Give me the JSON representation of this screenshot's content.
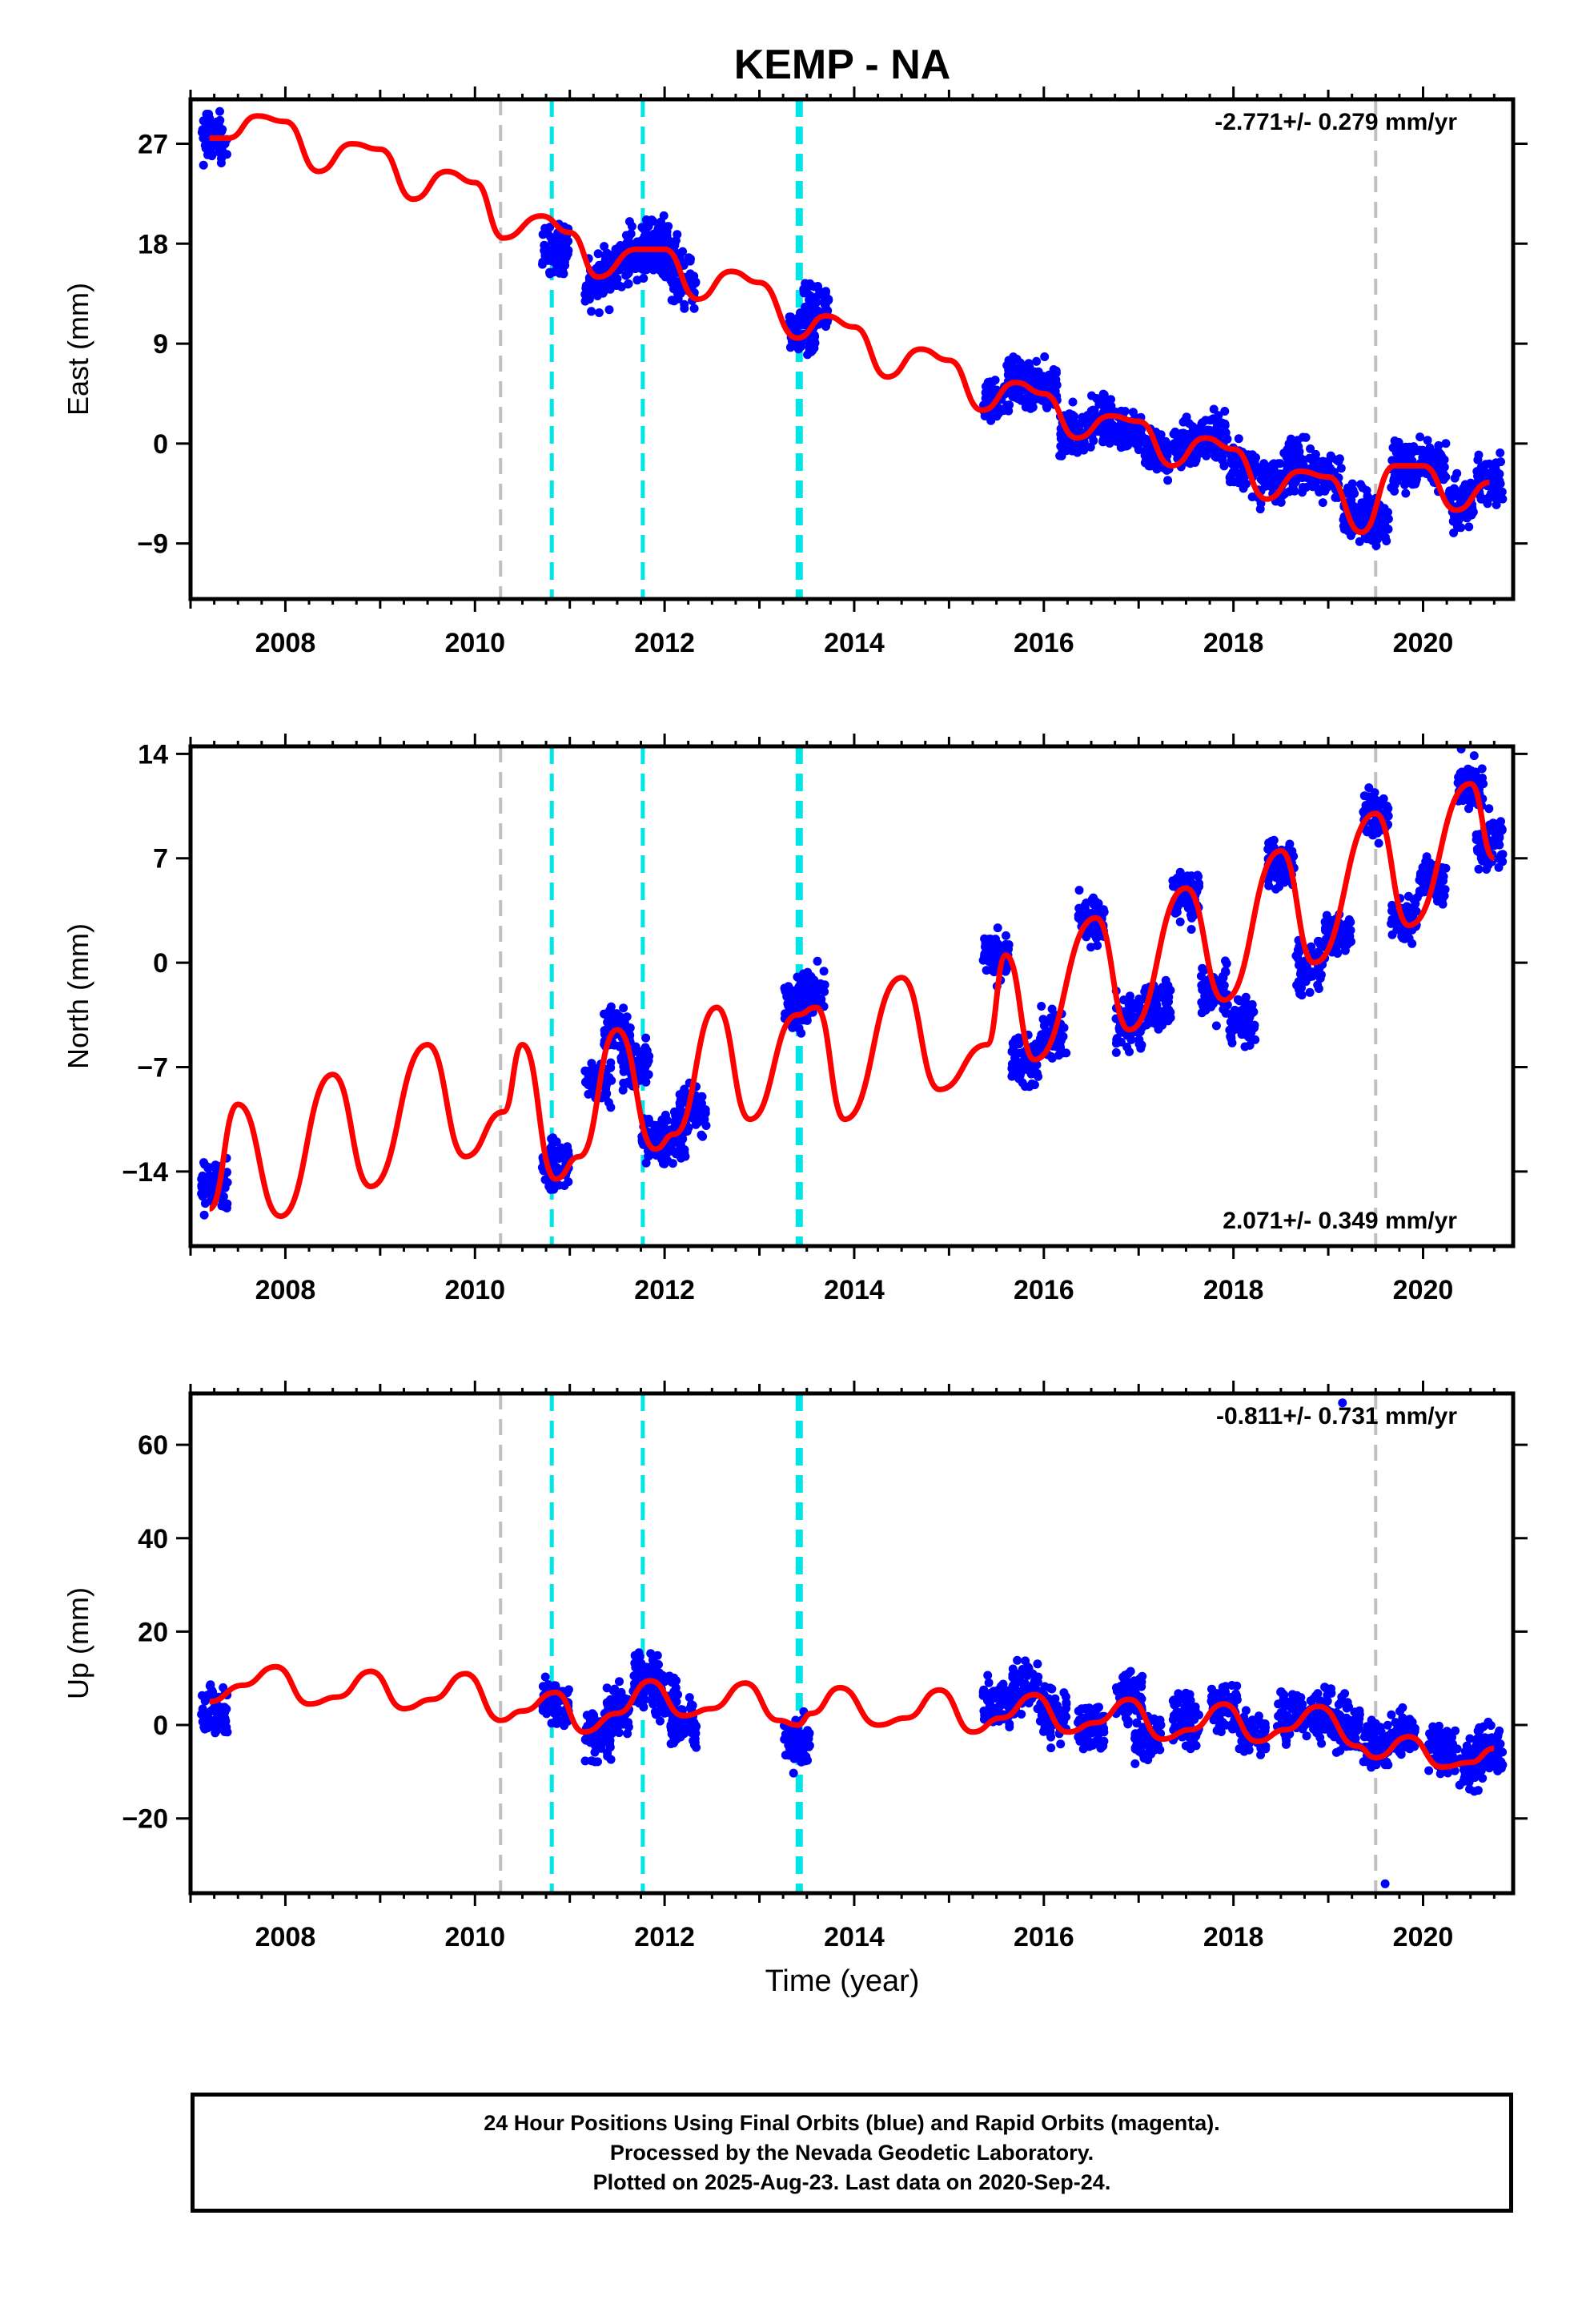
{
  "figure_title": "KEMP - NA",
  "caption": {
    "line1": "24 Hour Positions Using Final Orbits (blue) and Rapid Orbits (magenta).",
    "line2": "Processed by the Nevada Geodetic Laboratory.",
    "line3": "Plotted on 2025-Aug-23. Last data on 2020-Sep-24."
  },
  "colors": {
    "final_orbits": "#0000ff",
    "rapid_orbits": "#ff00ff",
    "model_fit": "#ff0000",
    "equipment_change": "#00e5e5",
    "earthquake": "#c0c0c0"
  },
  "chart_data": [
    {
      "type": "scatter",
      "title": "KEMP - NA",
      "xlabel": "",
      "ylabel": "East (mm)",
      "xlim": [
        2007.0,
        2020.95
      ],
      "ylim": [
        -14,
        31
      ],
      "x_ticks": [
        2008,
        2010,
        2012,
        2014,
        2016,
        2018,
        2020
      ],
      "y_ticks": [
        -9,
        0,
        9,
        18,
        27
      ],
      "rate_label": "-2.771+/- 0.279 mm/yr",
      "rate_position": "top-right",
      "grid": false,
      "vertical_lines": {
        "cyan": [
          2010.81,
          2011.77,
          2013.42
        ],
        "gray": [
          2010.27,
          2019.5
        ]
      },
      "series": [
        {
          "name": "Final Orbits",
          "style": "points",
          "x": [
            2007.25,
            2010.85,
            2011.3,
            2011.5,
            2011.7,
            2011.9,
            2012.0,
            2012.2,
            2013.45,
            2013.6,
            2015.5,
            2015.75,
            2016.0,
            2016.3,
            2016.6,
            2016.9,
            2017.2,
            2017.5,
            2017.8,
            2018.1,
            2018.4,
            2018.7,
            2019.0,
            2019.3,
            2019.5,
            2019.8,
            2020.1,
            2020.4,
            2020.7
          ],
          "y": [
            27.5,
            17.5,
            14.5,
            16.0,
            17.5,
            18.0,
            17.0,
            14.5,
            10.0,
            12.0,
            4.0,
            5.5,
            5.0,
            1.0,
            2.0,
            1.5,
            -1.0,
            0.0,
            0.5,
            -2.0,
            -3.5,
            -2.0,
            -3.0,
            -6.0,
            -7.0,
            -2.0,
            -2.0,
            -5.5,
            -3.5
          ]
        },
        {
          "name": "Model fit",
          "style": "line",
          "x": [
            2007.2,
            2007.4,
            2007.7,
            2008.0,
            2008.35,
            2008.7,
            2009.0,
            2009.35,
            2009.7,
            2010.0,
            2010.3,
            2010.7,
            2011.0,
            2011.3,
            2011.7,
            2012.0,
            2012.35,
            2012.7,
            2013.0,
            2013.4,
            2013.7,
            2014.0,
            2014.35,
            2014.7,
            2015.0,
            2015.35,
            2015.7,
            2016.0,
            2016.35,
            2016.7,
            2017.0,
            2017.35,
            2017.7,
            2018.0,
            2018.35,
            2018.7,
            2019.0,
            2019.35,
            2019.7,
            2020.0,
            2020.35,
            2020.7
          ],
          "y": [
            27.5,
            27.5,
            29.5,
            29.0,
            24.5,
            27.0,
            26.5,
            22.0,
            24.5,
            23.5,
            18.5,
            20.5,
            19.0,
            15.0,
            17.5,
            17.5,
            13.0,
            15.5,
            14.5,
            9.5,
            11.5,
            10.5,
            6.0,
            8.5,
            7.5,
            3.0,
            5.5,
            4.5,
            0.5,
            2.5,
            2.0,
            -2.0,
            0.5,
            -0.5,
            -5.0,
            -2.5,
            -3.0,
            -8.0,
            -2.0,
            -2.0,
            -6.0,
            -3.5
          ]
        }
      ]
    },
    {
      "type": "scatter",
      "xlabel": "",
      "ylabel": "North (mm)",
      "xlim": [
        2007.0,
        2020.95
      ],
      "ylim": [
        -19,
        14.5
      ],
      "x_ticks": [
        2008,
        2010,
        2012,
        2014,
        2016,
        2018,
        2020
      ],
      "y_ticks": [
        -14,
        -7,
        0,
        7,
        14
      ],
      "rate_label": "2.071+/- 0.349 mm/yr",
      "rate_position": "bottom-right",
      "grid": false,
      "vertical_lines": {
        "cyan": [
          2010.81,
          2011.77,
          2013.42
        ],
        "gray": [
          2010.27,
          2019.5
        ]
      },
      "series": [
        {
          "name": "Final Orbits",
          "style": "points",
          "x": [
            2007.25,
            2010.85,
            2011.3,
            2011.5,
            2011.7,
            2011.9,
            2012.1,
            2012.3,
            2013.4,
            2013.55,
            2015.5,
            2015.8,
            2016.1,
            2016.5,
            2016.9,
            2017.2,
            2017.5,
            2017.8,
            2018.1,
            2018.5,
            2018.8,
            2019.1,
            2019.5,
            2019.8,
            2020.1,
            2020.5,
            2020.7
          ],
          "y": [
            -15.0,
            -13.5,
            -8.0,
            -4.5,
            -7.0,
            -12.0,
            -11.5,
            -10.0,
            -3.0,
            -2.0,
            0.5,
            -6.5,
            -5.0,
            3.0,
            -4.0,
            -3.0,
            4.5,
            -2.0,
            -4.0,
            6.5,
            -0.5,
            2.0,
            10.0,
            3.0,
            5.5,
            12.0,
            8.0
          ]
        },
        {
          "name": "Model fit",
          "style": "line",
          "x": [
            2007.2,
            2007.5,
            2007.95,
            2008.5,
            2008.9,
            2009.5,
            2009.9,
            2010.3,
            2010.5,
            2010.85,
            2011.1,
            2011.5,
            2011.9,
            2012.1,
            2012.55,
            2012.9,
            2013.4,
            2013.6,
            2013.9,
            2014.5,
            2014.9,
            2015.4,
            2015.6,
            2015.9,
            2016.55,
            2016.9,
            2017.5,
            2017.9,
            2018.5,
            2018.85,
            2019.5,
            2019.85,
            2020.5,
            2020.75
          ],
          "y": [
            -16.5,
            -9.5,
            -17.0,
            -7.5,
            -15.0,
            -5.5,
            -13.0,
            -10.0,
            -5.5,
            -14.5,
            -13.0,
            -4.5,
            -12.5,
            -11.5,
            -3.0,
            -10.5,
            -3.5,
            -3.0,
            -10.5,
            -1.0,
            -8.5,
            -5.5,
            0.5,
            -6.5,
            3.0,
            -4.5,
            5.0,
            -2.5,
            7.5,
            0.0,
            10.0,
            2.5,
            12.0,
            7.0
          ]
        }
      ]
    },
    {
      "type": "scatter",
      "xlabel": "Time (year)",
      "ylabel": "Up (mm)",
      "xlim": [
        2007.0,
        2020.95
      ],
      "ylim": [
        -36,
        71
      ],
      "x_ticks": [
        2008,
        2010,
        2012,
        2014,
        2016,
        2018,
        2020
      ],
      "y_ticks": [
        -20,
        0,
        20,
        40,
        60
      ],
      "rate_label": "-0.811+/- 0.731 mm/yr",
      "rate_position": "top-right",
      "grid": false,
      "vertical_lines": {
        "cyan": [
          2010.81,
          2011.77,
          2013.42
        ],
        "gray": [
          2010.27,
          2019.5
        ]
      },
      "series": [
        {
          "name": "Final Orbits",
          "style": "points",
          "x": [
            2007.25,
            2010.85,
            2011.3,
            2011.5,
            2011.8,
            2012.0,
            2012.2,
            2013.4,
            2015.5,
            2015.8,
            2016.1,
            2016.5,
            2016.9,
            2017.1,
            2017.5,
            2017.9,
            2018.2,
            2018.6,
            2018.9,
            2019.2,
            2019.5,
            2019.8,
            2020.2,
            2020.5,
            2020.7,
            2019.15,
            2019.6
          ],
          "y": [
            3.0,
            5.0,
            -2.0,
            3.0,
            10.0,
            7.0,
            0.0,
            -4.0,
            4.0,
            8.0,
            2.0,
            0.0,
            6.0,
            -3.0,
            1.0,
            4.0,
            -2.0,
            3.0,
            2.0,
            0.0,
            -4.0,
            -2.0,
            -5.0,
            -8.0,
            -5.0,
            69.0,
            -34.0
          ]
        },
        {
          "name": "Model fit",
          "style": "line",
          "x": [
            2007.2,
            2007.55,
            2007.9,
            2008.25,
            2008.55,
            2008.9,
            2009.25,
            2009.55,
            2009.9,
            2010.27,
            2010.5,
            2010.85,
            2011.15,
            2011.5,
            2011.85,
            2012.2,
            2012.5,
            2012.85,
            2013.2,
            2013.4,
            2013.55,
            2013.85,
            2014.25,
            2014.55,
            2014.9,
            2015.25,
            2015.55,
            2015.9,
            2016.25,
            2016.55,
            2016.9,
            2017.25,
            2017.55,
            2017.9,
            2018.25,
            2018.55,
            2018.9,
            2019.3,
            2019.5,
            2019.85,
            2020.2,
            2020.5,
            2020.75
          ],
          "y": [
            5.0,
            8.5,
            12.5,
            4.5,
            6.0,
            11.5,
            3.5,
            5.5,
            11.0,
            1.0,
            3.0,
            7.0,
            -1.5,
            2.5,
            9.5,
            2.0,
            3.5,
            9.0,
            1.0,
            0.0,
            2.5,
            8.0,
            0.0,
            1.5,
            7.5,
            -1.5,
            1.5,
            6.5,
            -1.5,
            0.5,
            5.5,
            -3.0,
            -1.0,
            4.5,
            -3.5,
            -1.0,
            4.0,
            -4.5,
            -7.0,
            -2.5,
            -9.0,
            -8.0,
            -5.0
          ]
        }
      ]
    }
  ]
}
